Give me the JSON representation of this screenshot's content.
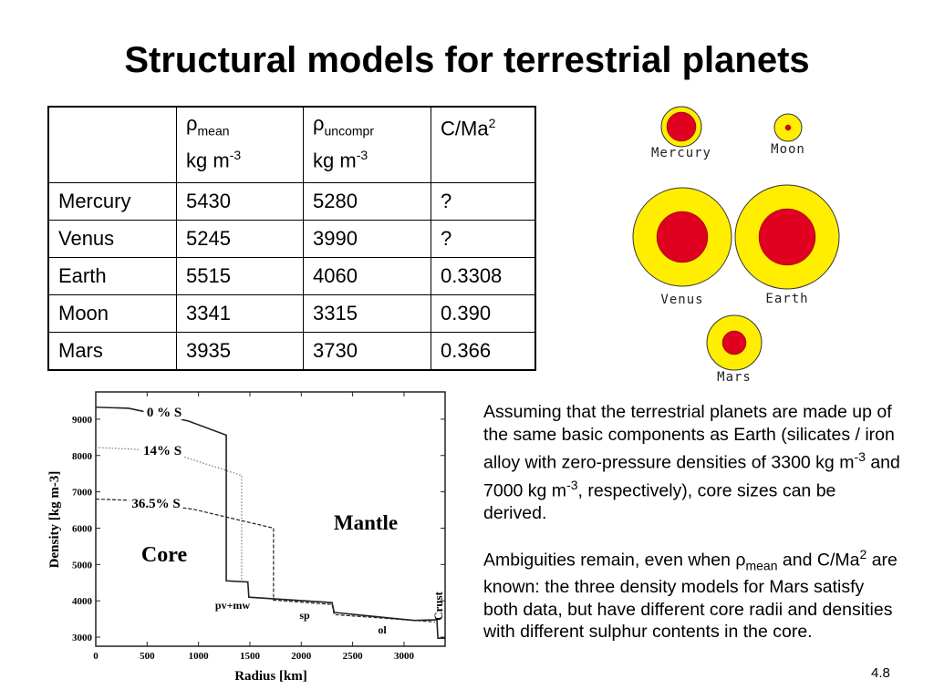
{
  "title": "Structural models for terrestrial planets",
  "table": {
    "headers": [
      {
        "symbol": "ρ",
        "sub": "mean",
        "unit": "kg m",
        "exp": "-3"
      },
      {
        "symbol": "ρ",
        "sub": "uncompr",
        "unit": "kg m",
        "exp": "-3"
      },
      {
        "symbol": "C/Ma",
        "sup": "2"
      }
    ],
    "rows": [
      [
        "Mercury",
        "5430",
        "5280",
        "?"
      ],
      [
        "Venus",
        "5245",
        "3990",
        "?"
      ],
      [
        "Earth",
        "5515",
        "4060",
        "0.3308"
      ],
      [
        "Moon",
        "3341",
        "3315",
        "0.390"
      ],
      [
        "Mars",
        "3935",
        "3730",
        "0.366"
      ]
    ]
  },
  "planets": [
    {
      "name": "Mercury"
    },
    {
      "name": "Moon"
    },
    {
      "name": "Venus"
    },
    {
      "name": "Earth"
    },
    {
      "name": "Mars"
    }
  ],
  "colors": {
    "mantle": "#ffee00",
    "core": "#e00020"
  },
  "text": {
    "p1_a": "Assuming that the terrestrial planets are made up of the same basic components as Earth (silicates / iron alloy with zero-pressure densities of 3300 kg m",
    "p1_exp1": "-3",
    "p1_b": " and 7000 kg m",
    "p1_exp2": "-3",
    "p1_c": ", respectively), core sizes can be derived.",
    "p2_a": "Ambiguities remain, even when ρ",
    "p2_sub": "mean",
    "p2_b": " and C/Ma",
    "p2_sup": "2",
    "p2_c": " are known: the three density models for Mars satisfy both data, but have different core radii and densities with different sulphur contents in the core."
  },
  "page_number": "4.8",
  "chart_data": {
    "type": "line",
    "xlabel": "Radius  [km]",
    "ylabel": "Density [kg m-3]",
    "xlim": [
      0,
      3400
    ],
    "ylim": [
      2750,
      9750
    ],
    "xticks": [
      0,
      500,
      1000,
      1500,
      2000,
      2500,
      3000
    ],
    "yticks": [
      3000,
      4000,
      5000,
      6000,
      7000,
      8000,
      9000
    ],
    "annotations": [
      "Core",
      "Mantle",
      "pv+mw",
      "sp",
      "ol",
      "Crust"
    ],
    "series": [
      {
        "name": "0 % S",
        "style": "solid",
        "x": [
          0,
          320,
          900,
          1270,
          1270,
          1480,
          1490,
          2300,
          2320,
          3100,
          3320,
          3330,
          3400
        ],
        "y": [
          9330,
          9300,
          8950,
          8560,
          4550,
          4520,
          4100,
          3950,
          3680,
          3460,
          3480,
          2970,
          2970
        ]
      },
      {
        "name": "14% S",
        "style": "dotted",
        "x": [
          0,
          400,
          850,
          1420,
          1420
        ],
        "y": [
          8220,
          8170,
          7970,
          7450,
          4550
        ]
      },
      {
        "name": "36.5%  S",
        "style": "dashed",
        "x": [
          0,
          300,
          950,
          1730,
          1730,
          2300,
          2320,
          3300
        ],
        "y": [
          6800,
          6770,
          6520,
          6000,
          4020,
          3900,
          3620,
          3420
        ]
      }
    ]
  }
}
